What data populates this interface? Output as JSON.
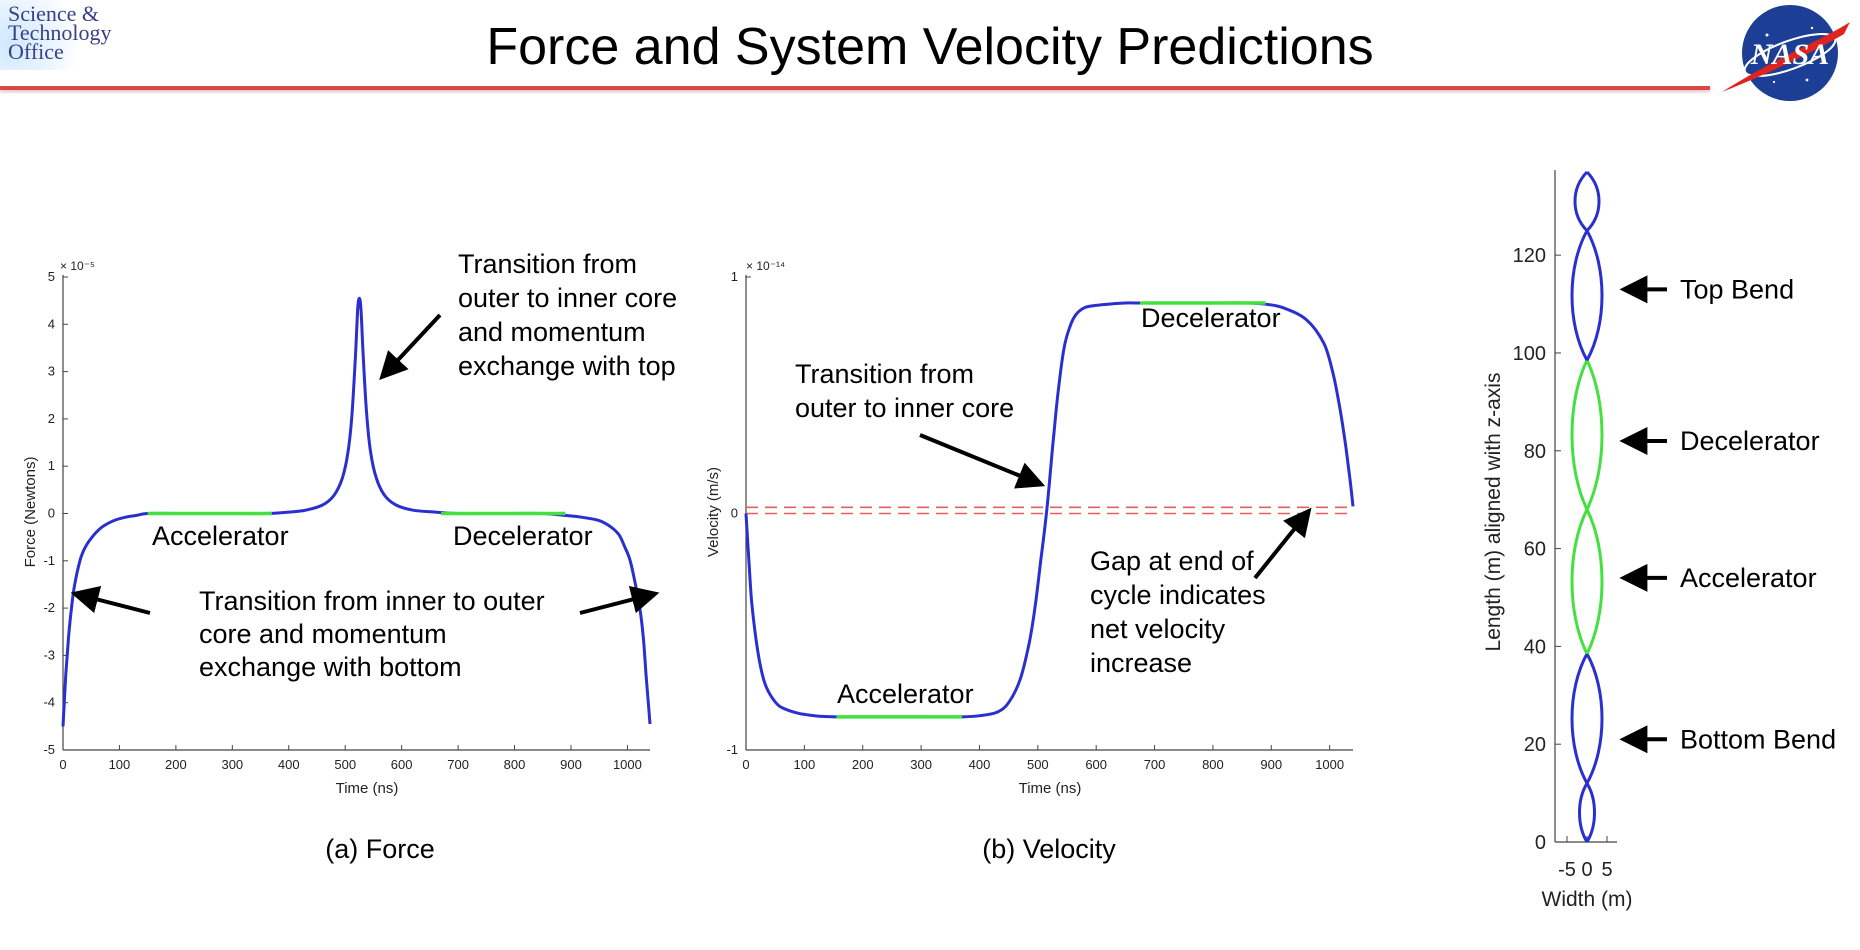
{
  "header": {
    "title": "Force and System Velocity Predictions",
    "logo_lines": [
      "Science &",
      "Technology",
      "Office"
    ],
    "nasa_logo_text": "NASA"
  },
  "colors": {
    "curve": "#2a2fd0",
    "highlight": "#44e040",
    "dashed": "#e06060",
    "rule": "#d94848"
  },
  "chart_data": [
    {
      "id": "force",
      "type": "line",
      "caption": "(a) Force",
      "xlabel": "Time (ns)",
      "ylabel": "Force (Newtons)",
      "exponent_label": "× 10⁻⁵",
      "xlim": [
        0,
        1040
      ],
      "ylim": [
        -5,
        5
      ],
      "xticks": [
        0,
        100,
        200,
        300,
        400,
        500,
        600,
        700,
        800,
        900,
        1000
      ],
      "yticks": [
        -5,
        -4,
        -3,
        -2,
        -1,
        0,
        1,
        2,
        3,
        4,
        5
      ],
      "series": [
        {
          "x": [
            0,
            5,
            10,
            15,
            20,
            30,
            40,
            55,
            70,
            90,
            110,
            130,
            150,
            200,
            250,
            300,
            360,
            400,
            430,
            460,
            480,
            495,
            505,
            512,
            518,
            522,
            525,
            528,
            532,
            538,
            545,
            555,
            570,
            590,
            620,
            660,
            700,
            750,
            800,
            850,
            890,
            920,
            950,
            970,
            985,
            995,
            1005,
            1015,
            1022,
            1028,
            1033,
            1037,
            1040
          ],
          "y": [
            -4.5,
            -3.4,
            -2.6,
            -2.0,
            -1.55,
            -1.0,
            -0.7,
            -0.45,
            -0.28,
            -0.15,
            -0.08,
            -0.04,
            0,
            0,
            0,
            0,
            0,
            0.03,
            0.07,
            0.18,
            0.38,
            0.75,
            1.3,
            2.1,
            3.3,
            4.3,
            4.55,
            4.3,
            3.3,
            2.1,
            1.3,
            0.75,
            0.38,
            0.18,
            0.07,
            0.03,
            0,
            0,
            0,
            0,
            -0.04,
            -0.08,
            -0.15,
            -0.28,
            -0.45,
            -0.7,
            -1.0,
            -1.55,
            -2.0,
            -2.6,
            -3.4,
            -4.0,
            -4.45
          ],
          "highlight_ranges": [
            [
              150,
              370
            ],
            [
              670,
              890
            ]
          ]
        }
      ],
      "annotations": [
        {
          "id": "transition-top",
          "lines": [
            "Transition from",
            "outer to inner core",
            "and momentum",
            "exchange with top"
          ]
        },
        {
          "id": "accelerator",
          "lines": [
            "Accelerator"
          ]
        },
        {
          "id": "decelerator",
          "lines": [
            "Decelerator"
          ]
        },
        {
          "id": "transition-bottom",
          "lines": [
            "Transition from inner to outer",
            "core and momentum",
            "exchange with bottom"
          ]
        }
      ]
    },
    {
      "id": "velocity",
      "type": "line",
      "caption": "(b) Velocity",
      "xlabel": "Time (ns)",
      "ylabel": "Velocity (m/s)",
      "exponent_label": "× 10⁻¹⁴",
      "xlim": [
        0,
        1040
      ],
      "ylim": [
        -1,
        1
      ],
      "xticks": [
        0,
        100,
        200,
        300,
        400,
        500,
        600,
        700,
        800,
        900,
        1000
      ],
      "yticks": [
        -1,
        0,
        1
      ],
      "reference_lines": [
        0,
        0.026
      ],
      "series": [
        {
          "x": [
            0,
            5,
            10,
            20,
            30,
            40,
            55,
            70,
            90,
            110,
            130,
            155,
            200,
            250,
            300,
            370,
            400,
            430,
            450,
            470,
            485,
            495,
            505,
            512,
            518,
            523,
            528,
            535,
            545,
            555,
            565,
            580,
            600,
            620,
            650,
            680,
            750,
            800,
            860,
            890,
            920,
            960,
            990,
            1005,
            1015,
            1025,
            1032,
            1037,
            1040
          ],
          "y": [
            0,
            -0.2,
            -0.38,
            -0.58,
            -0.7,
            -0.76,
            -0.81,
            -0.83,
            -0.845,
            -0.853,
            -0.858,
            -0.86,
            -0.86,
            -0.86,
            -0.86,
            -0.86,
            -0.855,
            -0.84,
            -0.8,
            -0.7,
            -0.55,
            -0.4,
            -0.2,
            -0.06,
            0.08,
            0.22,
            0.35,
            0.52,
            0.7,
            0.79,
            0.84,
            0.87,
            0.88,
            0.885,
            0.89,
            0.89,
            0.89,
            0.89,
            0.89,
            0.885,
            0.87,
            0.82,
            0.72,
            0.6,
            0.48,
            0.33,
            0.2,
            0.1,
            0.03
          ],
          "highlight_ranges": [
            [
              155,
              370
            ],
            [
              675,
              890
            ]
          ]
        }
      ],
      "annotations": [
        {
          "id": "decelerator",
          "lines": [
            "Decelerator"
          ]
        },
        {
          "id": "transition",
          "lines": [
            "Transition from",
            "outer to inner core"
          ]
        },
        {
          "id": "gap",
          "lines": [
            "Gap at end of",
            "cycle indicates",
            "net velocity",
            "increase"
          ]
        },
        {
          "id": "accelerator",
          "lines": [
            "Accelerator"
          ]
        }
      ]
    },
    {
      "id": "geometry",
      "type": "line",
      "caption": "",
      "xlabel": "Width (m)",
      "ylabel": "Length (m) aligned with z-axis",
      "xlim": [
        -8,
        8
      ],
      "ylim": [
        0,
        137
      ],
      "xticks": [
        -5,
        0,
        5
      ],
      "yticks": [
        0,
        20,
        40,
        60,
        80,
        100,
        120
      ],
      "strands": [
        {
          "ys": [
            0,
            137
          ],
          "phase": 0,
          "color": "curve"
        },
        {
          "ys": [
            0,
            137
          ],
          "phase": 1,
          "color": "curve"
        }
      ],
      "bend_bottom": {
        "y0": 0,
        "y1": 38.5,
        "amp": 5,
        "color": "curve"
      },
      "green_section": {
        "y0": 38.5,
        "y1": 98.5,
        "amp": 5,
        "color": "highlight"
      },
      "bend_top": {
        "y0": 98.5,
        "y1": 137,
        "amp": 5,
        "color": "curve"
      },
      "nodes": [
        0,
        12,
        38.5,
        68,
        98.5,
        125,
        137
      ],
      "annotations": [
        {
          "id": "top-bend",
          "lines": [
            "Top Bend"
          ],
          "y": 113
        },
        {
          "id": "decelerator",
          "lines": [
            "Decelerator"
          ],
          "y": 82
        },
        {
          "id": "accelerator",
          "lines": [
            "Accelerator"
          ],
          "y": 54
        },
        {
          "id": "bottom-bend",
          "lines": [
            "Bottom Bend"
          ],
          "y": 21
        }
      ]
    }
  ]
}
